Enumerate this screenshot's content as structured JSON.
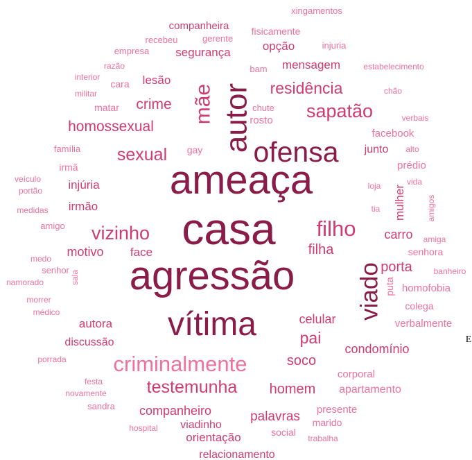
{
  "words": [
    "xingamentos",
    "companheira",
    "recebeu",
    "gerente",
    "fisicamente",
    "empresa",
    "segurança",
    "opção",
    "injuria",
    "razão",
    "bam",
    "mensagem",
    "estabelecimento",
    "interior",
    "cara",
    "lesão",
    "militar",
    "matar",
    "crime",
    "mãe",
    "autor",
    "residência",
    "chão",
    "chute",
    "rosto",
    "sapatão",
    "verbais",
    "homossexual",
    "facebook",
    "família",
    "sexual",
    "gay",
    "ofensa",
    "junto",
    "alto",
    "irmã",
    "prédio",
    "veículo",
    "ameaça",
    "injúria",
    "loja",
    "vida",
    "portão",
    "mulher",
    "amigos",
    "irmão",
    "medidas",
    "tia",
    "filho",
    "casa",
    "amigo",
    "vizinho",
    "carro",
    "amiga",
    "motivo",
    "face",
    "filha",
    "senhora",
    "medo",
    "senhor",
    "porta",
    "banheiro",
    "sala",
    "namorado",
    "viado",
    "agressão",
    "homofobia",
    "puta",
    "morrer",
    "colega",
    "médico",
    "celular",
    "vítima",
    "autora",
    "verbalmente",
    "pai",
    "discussão",
    "condomínio",
    "porrada",
    "criminalmente",
    "soco",
    "corporal",
    "festa",
    "testemunha",
    "homem",
    "apartamento",
    "novamente",
    "sandra",
    "companheiro",
    "presente",
    "palavras",
    "marido",
    "hospital",
    "viadinho",
    "social",
    "orientação",
    "trabalha",
    "relacionamento",
    "E"
  ]
}
